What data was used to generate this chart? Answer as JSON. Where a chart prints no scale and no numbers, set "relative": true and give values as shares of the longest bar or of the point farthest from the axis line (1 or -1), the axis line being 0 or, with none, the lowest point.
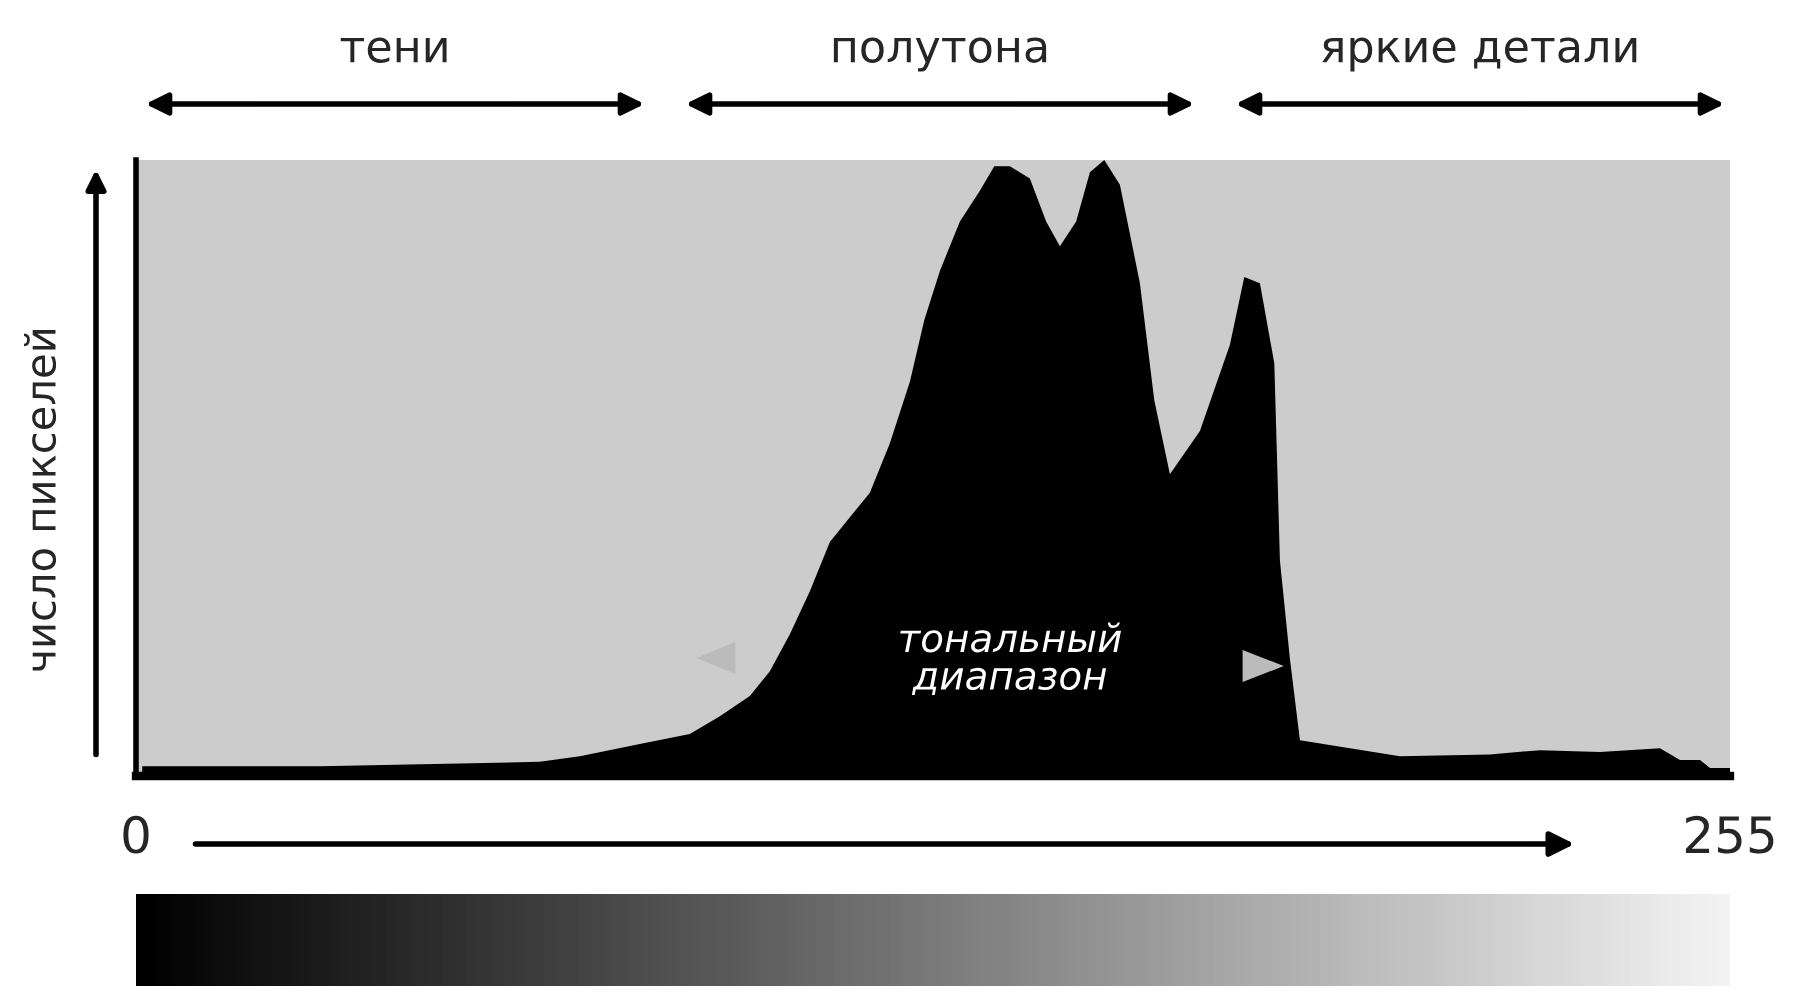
{
  "chart_data": {
    "type": "area",
    "relative": true,
    "ylabel": "число пикселей",
    "annotations": [
      "тени",
      "полутона",
      "яркие детали",
      "тональный\nдиапазон"
    ],
    "xlim": [
      0,
      255
    ],
    "xticks": [
      0,
      255
    ],
    "x": [
      1,
      29.4,
      64.6,
      71,
      80.6,
      88.6,
      93.4,
      98.2,
      101.4,
      104.6,
      107.8,
      111,
      114.2,
      117.4,
      120.6,
      123.8,
      126.1,
      128.6,
      131.8,
      135,
      137.3,
      139.8,
      143,
      145.6,
      147.8,
      150.4,
      152.6,
      154.9,
      157.4,
      160.6,
      162.9,
      165.4,
      170.2,
      175,
      177.3,
      179.8,
      182.1,
      183,
      184.6,
      186.2,
      202.2,
      216.6,
      224.6,
      234.2,
      243.8,
      247,
      250.2,
      251.8,
      255
    ],
    "series": [
      {
        "color": "#000000",
        "values": [
          0.016,
          0.016,
          0.023,
          0.032,
          0.052,
          0.068,
          0.097,
          0.13,
          0.17,
          0.23,
          0.3,
          0.38,
          0.42,
          0.46,
          0.54,
          0.64,
          0.74,
          0.82,
          0.9,
          0.95,
          0.99,
          0.99,
          0.97,
          0.9,
          0.86,
          0.9,
          0.98,
          1,
          0.96,
          0.8,
          0.61,
          0.49,
          0.56,
          0.7,
          0.81,
          0.8,
          0.67,
          0.35,
          0.19,
          0.058,
          0.032,
          0.035,
          0.042,
          0.039,
          0.045,
          0.026,
          0.026,
          0.013,
          0.013
        ]
      }
    ],
    "legend": false
  }
}
